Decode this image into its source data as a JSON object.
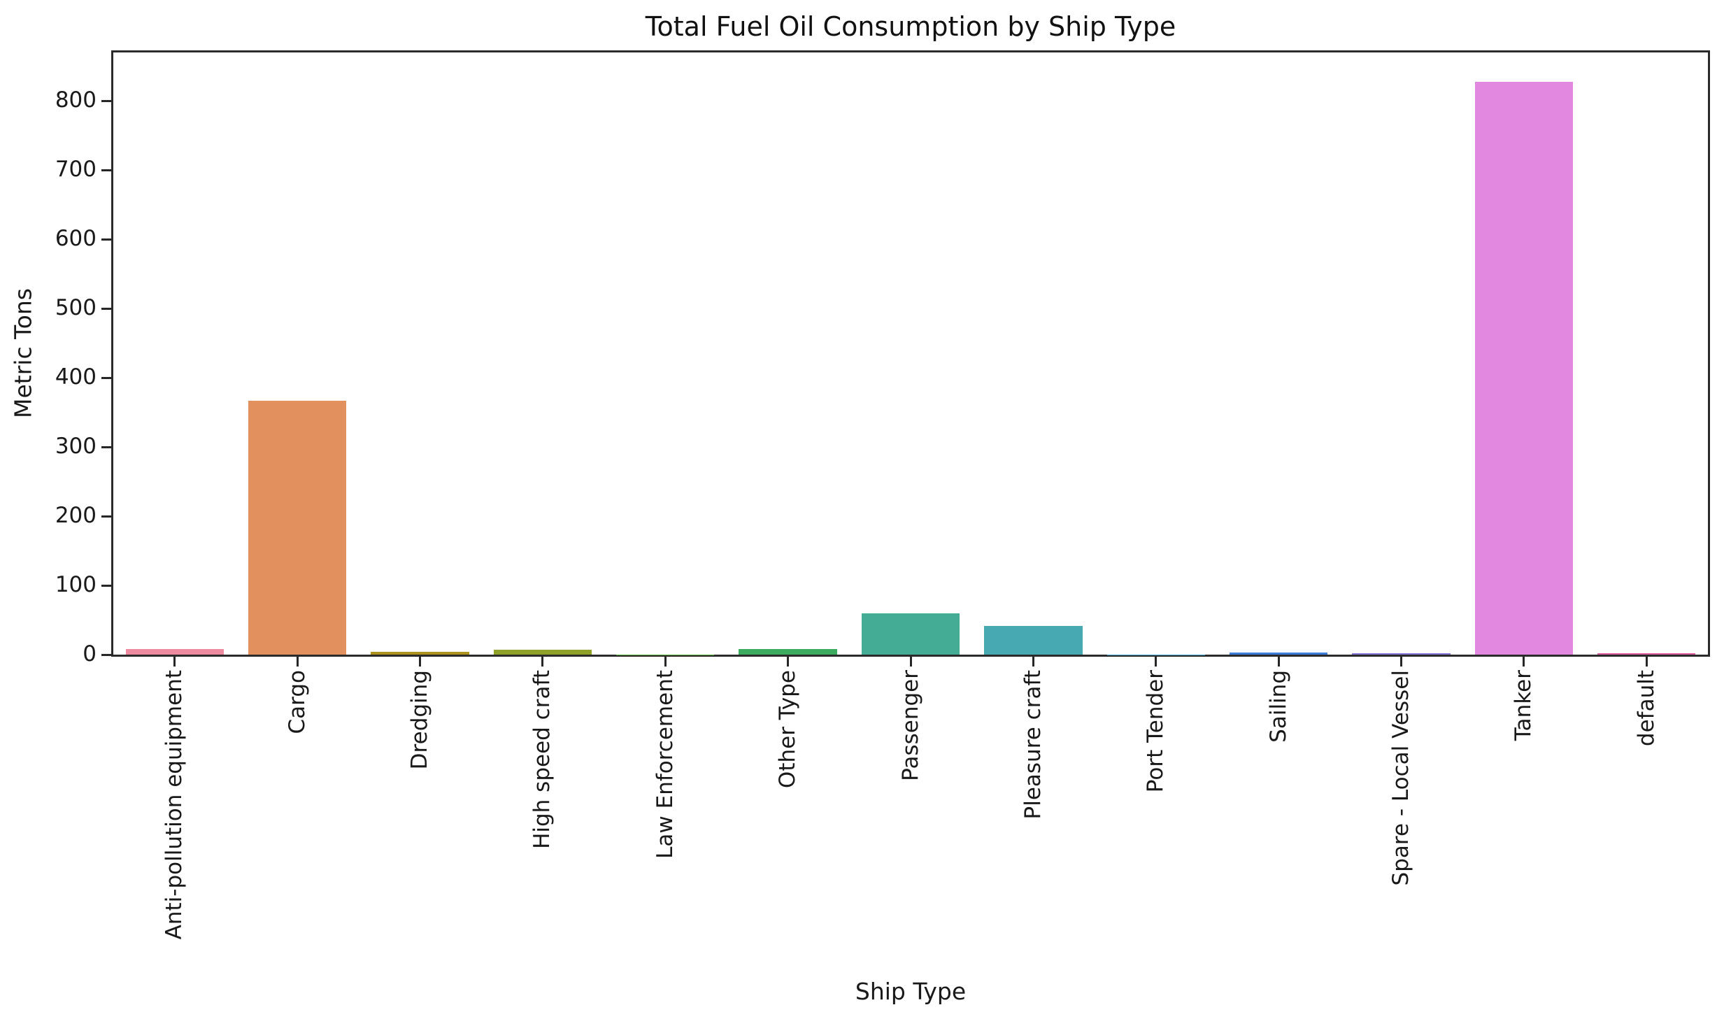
{
  "chart_data": {
    "type": "bar",
    "title": "Total Fuel Oil Consumption by Ship Type",
    "xlabel": "Ship Type",
    "ylabel": "Metric Tons",
    "categories": [
      "Anti-pollution equipment",
      "Cargo",
      "Dredging",
      "High speed craft",
      "Law Enforcement",
      "Other Type",
      "Passenger",
      "Pleasure craft",
      "Port Tender",
      "Sailing",
      "Spare - Local Vessel",
      "Tanker",
      "default"
    ],
    "values": [
      8,
      367,
      4,
      7,
      0.5,
      8,
      60,
      41,
      0.5,
      3,
      2,
      828,
      2
    ],
    "bar_colors": [
      "#ef8ba0",
      "#e2915e",
      "#ae921e",
      "#90a12a",
      "#55ad36",
      "#3caa5f",
      "#44ab95",
      "#47a9b1",
      "#3fa8cc",
      "#3c7ede",
      "#8577d8",
      "#e288e0",
      "#dd5f9f"
    ],
    "ylim": [
      0,
      870
    ],
    "yticks": [
      0,
      100,
      200,
      300,
      400,
      500,
      600,
      700,
      800
    ],
    "x_tick_rotation": 90,
    "grid": false,
    "legend_position": "none",
    "bar_width_fraction": 0.8
  },
  "style_colors": {
    "background": "#ffffff",
    "spine": "#2b2b2b",
    "tick": "#262626",
    "text": "#191919",
    "title_text": "#111111"
  }
}
